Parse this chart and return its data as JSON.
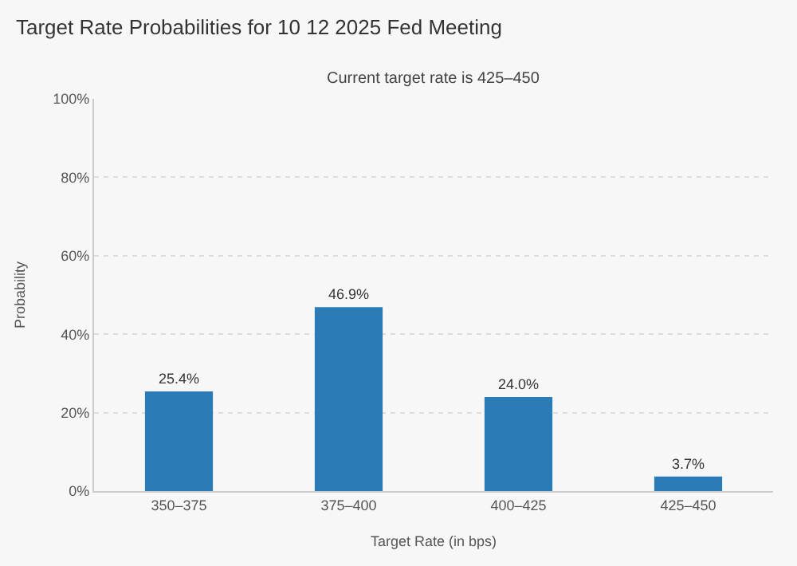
{
  "chart_data": {
    "type": "bar",
    "title": "Target Rate Probabilities for 10 12 2025 Fed Meeting",
    "subtitle": "Current target rate is 425–450",
    "xlabel": "Target Rate (in bps)",
    "ylabel": "Probability",
    "categories": [
      "350–375",
      "375–400",
      "400–425",
      "425–450"
    ],
    "values": [
      25.4,
      46.9,
      24.0,
      3.7
    ],
    "color": "#2b7cb6",
    "value_labels": [
      "25.4%",
      "46.9%",
      "24.0%",
      "3.7%"
    ],
    "ylim": [
      0,
      100
    ],
    "yticks": [
      {
        "value": 0,
        "label": "0%"
      },
      {
        "value": 20,
        "label": "20%"
      },
      {
        "value": 40,
        "label": "40%"
      },
      {
        "value": 60,
        "label": "60%"
      },
      {
        "value": 80,
        "label": "80%"
      },
      {
        "value": 100,
        "label": "100%"
      }
    ],
    "grid": "y",
    "legend": false
  }
}
